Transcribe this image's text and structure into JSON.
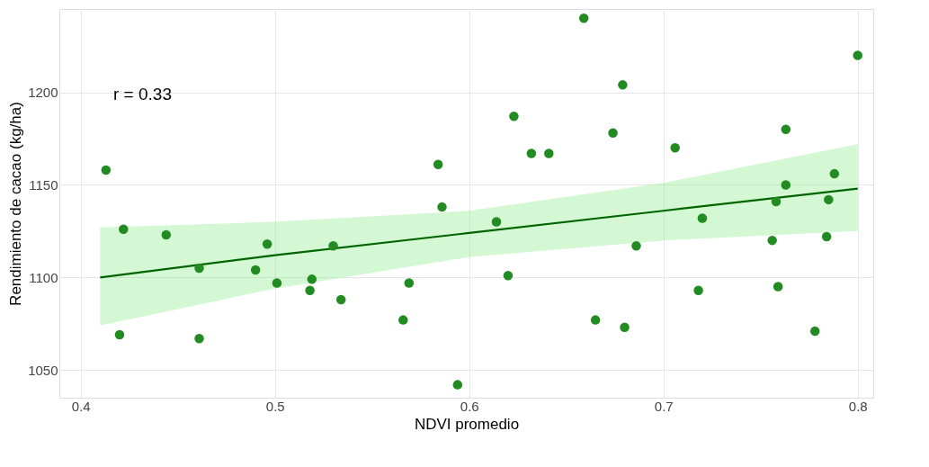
{
  "chart_data": {
    "type": "scatter",
    "xlabel": "NDVI promedio",
    "ylabel": "Rendimiento de cacao (kg/ha)",
    "xlim": [
      0.389,
      0.808
    ],
    "ylim": [
      1035,
      1245
    ],
    "xticks": [
      0.4,
      0.5,
      0.6,
      0.7,
      0.8
    ],
    "yticks": [
      1050,
      1100,
      1150,
      1200
    ],
    "grid": true,
    "annotations": [
      "r = 0.33"
    ],
    "series": [
      {
        "type": "scatter",
        "color": "#228b22",
        "marker": "circle",
        "x": [
          0.413,
          0.422,
          0.42,
          0.444,
          0.461,
          0.461,
          0.496,
          0.49,
          0.501,
          0.518,
          0.519,
          0.53,
          0.534,
          0.584,
          0.586,
          0.566,
          0.569,
          0.594,
          0.614,
          0.62,
          0.623,
          0.632,
          0.641,
          0.659,
          0.665,
          0.674,
          0.679,
          0.68,
          0.686,
          0.706,
          0.718,
          0.72,
          0.756,
          0.758,
          0.759,
          0.763,
          0.763,
          0.778,
          0.784,
          0.785,
          0.788,
          0.8
        ],
        "values": [
          1158,
          1126,
          1069,
          1123,
          1105,
          1067,
          1118,
          1104,
          1097,
          1093,
          1099,
          1117,
          1088,
          1161,
          1138,
          1077,
          1097,
          1042,
          1130,
          1101,
          1187,
          1167,
          1167,
          1240,
          1077,
          1178,
          1204,
          1073,
          1117,
          1170,
          1093,
          1132,
          1120,
          1141,
          1095,
          1180,
          1150,
          1071,
          1122,
          1142,
          1156,
          1220
        ]
      },
      {
        "type": "line",
        "color": "#006400",
        "line_style": "solid",
        "x": [
          0.41,
          0.5,
          0.6,
          0.7,
          0.8
        ],
        "values": [
          1100,
          1112,
          1124,
          1136,
          1148
        ],
        "lower": [
          1074,
          1094,
          1111,
          1120,
          1125
        ],
        "upper": [
          1127,
          1130,
          1136,
          1151,
          1172
        ]
      }
    ]
  }
}
